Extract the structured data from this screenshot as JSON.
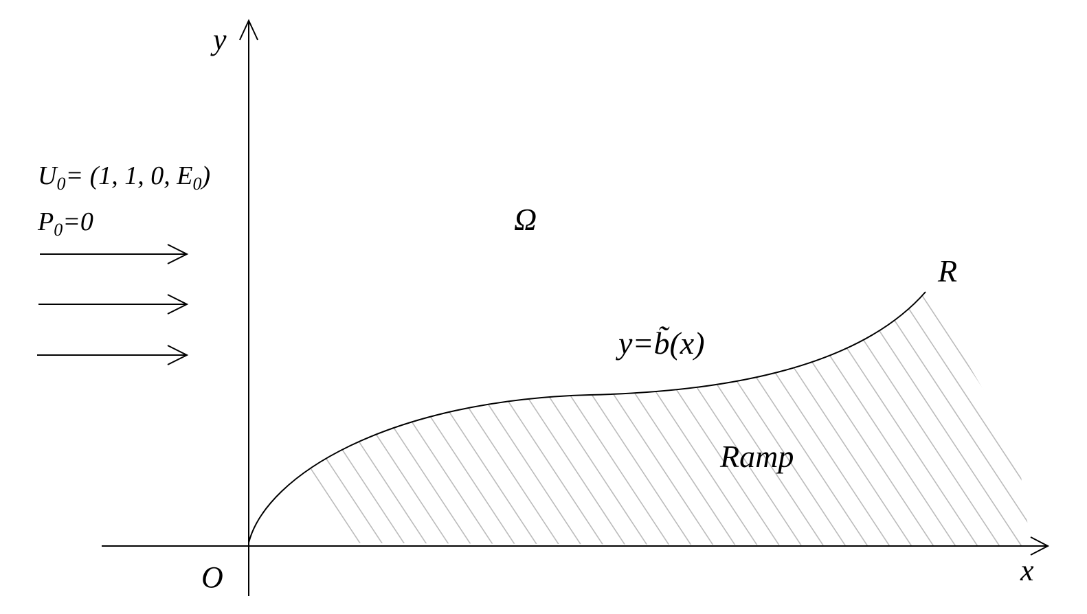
{
  "axes": {
    "y_label": "y",
    "x_label": "x",
    "origin_label": "O"
  },
  "inflow": {
    "u_name": "U",
    "u_sub": "0",
    "u_rest": "= (1, 1, 0, E",
    "e_sub": "0",
    "u_close": ")",
    "p_name": "P",
    "p_sub": "0",
    "p_rest": "=0"
  },
  "domain_label": "Ω",
  "boundary": {
    "equation": "y=b̃(x)",
    "end_label": "R"
  },
  "ramp_label": "Ramp"
}
